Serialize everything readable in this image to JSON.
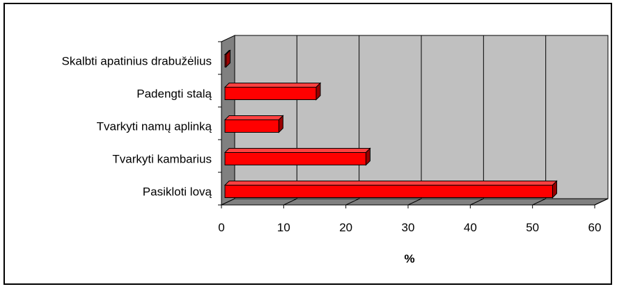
{
  "chart_data": {
    "type": "bar",
    "orientation": "horizontal",
    "style": "3d",
    "categories": [
      "Pasikloti lovą",
      "Tvarkyti kambarius",
      "Tvarkyti namų aplinką",
      "Padengti stalą",
      "Skalbti apatinius drabužėlius"
    ],
    "values": [
      53,
      23,
      9,
      15,
      0.5
    ],
    "xlabel": "%",
    "ylabel": "",
    "title": "",
    "xlim": [
      0,
      60
    ],
    "xticks": [
      "0",
      "10",
      "20",
      "30",
      "40",
      "50",
      "60"
    ],
    "grid": true,
    "legend": "none",
    "colors": {
      "bar_front": "#ff0000",
      "bar_top": "#ff4040",
      "bar_side": "#990000",
      "plot_back": "#c0c0c0",
      "plot_floor": "#808080",
      "plot_side_wall": "#808080",
      "grid": "#000000"
    }
  }
}
